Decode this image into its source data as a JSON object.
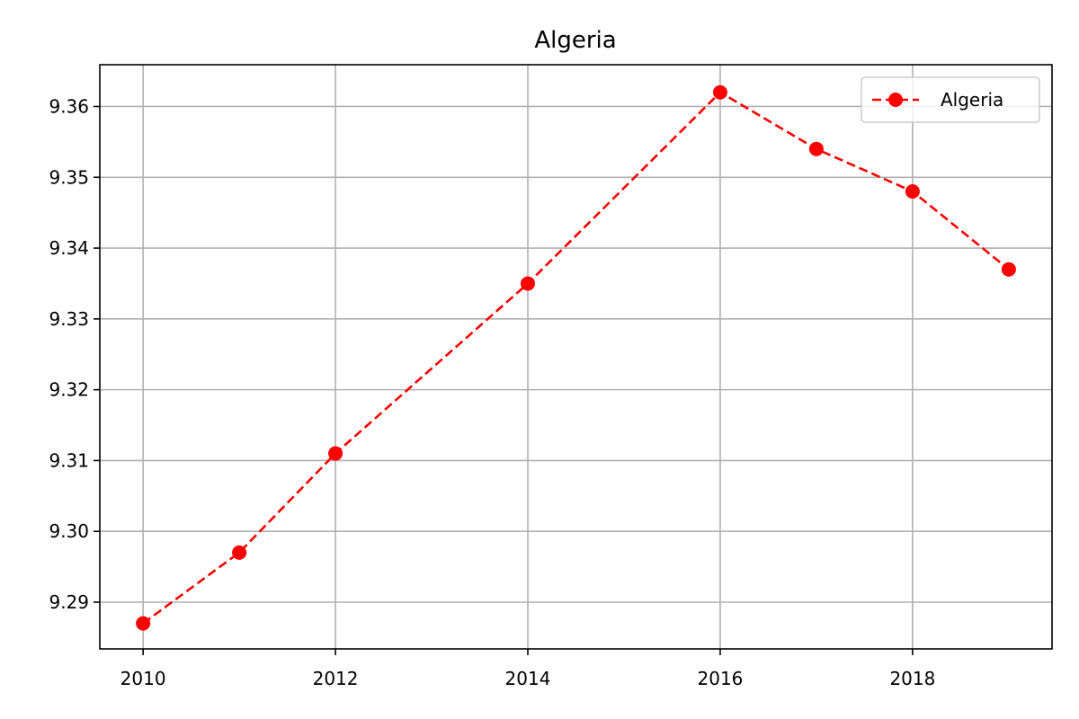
{
  "chart_data": {
    "type": "line",
    "title": "Algeria",
    "xlabel": "",
    "ylabel": "",
    "x": [
      2010,
      2011,
      2012,
      2014,
      2016,
      2017,
      2018,
      2019
    ],
    "series": [
      {
        "name": "Algeria",
        "values": [
          9.287,
          9.297,
          9.311,
          9.335,
          9.362,
          9.354,
          9.348,
          9.337
        ],
        "color": "#ff0000",
        "line_style": "dashed",
        "marker": "circle"
      }
    ],
    "xlim": [
      2009.55,
      2019.45
    ],
    "ylim": [
      9.2834,
      9.3659
    ],
    "x_ticks": [
      2010,
      2012,
      2014,
      2016,
      2018
    ],
    "x_tick_labels": [
      "2010",
      "2012",
      "2014",
      "2016",
      "2018"
    ],
    "y_ticks": [
      9.29,
      9.3,
      9.31,
      9.32,
      9.33,
      9.34,
      9.35,
      9.36
    ],
    "y_tick_labels": [
      "9.29",
      "9.30",
      "9.31",
      "9.32",
      "9.33",
      "9.34",
      "9.35",
      "9.36"
    ],
    "grid": true,
    "legend_position": "top-right",
    "legend_entries": [
      "Algeria"
    ]
  }
}
